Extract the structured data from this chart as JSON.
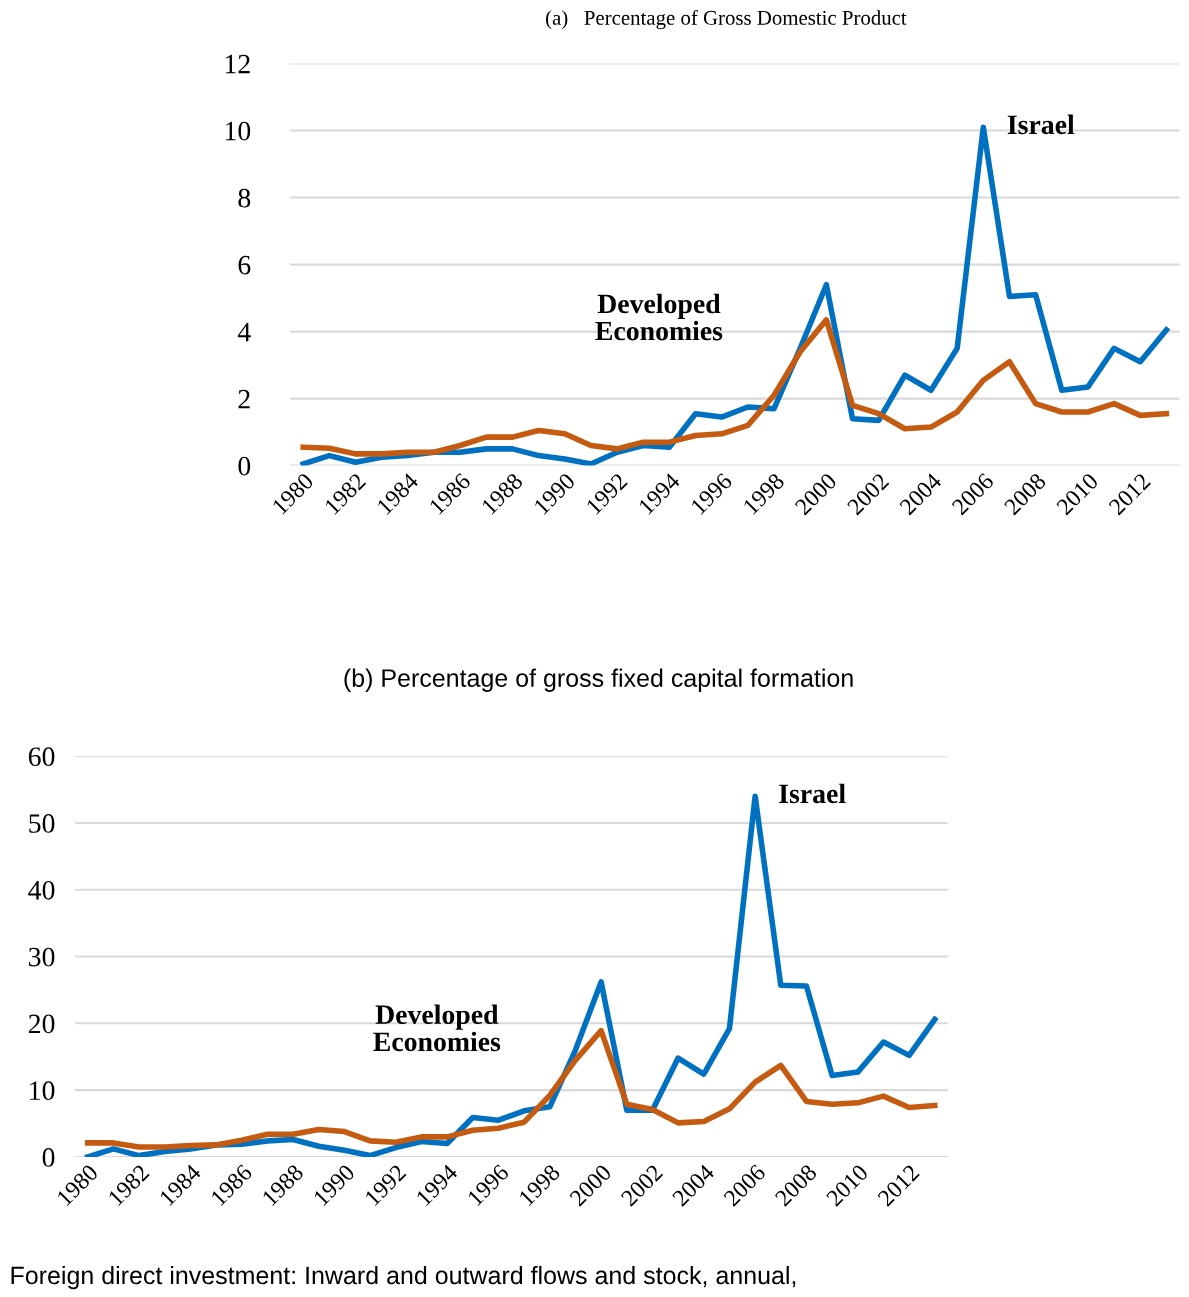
{
  "chart_data": [
    {
      "type": "line",
      "title": "(a)   Percentage of Gross Domestic Product",
      "categories": [
        "1980",
        null,
        "1982",
        null,
        "1984",
        null,
        "1986",
        null,
        "1988",
        null,
        "1990",
        null,
        "1992",
        null,
        "1994",
        null,
        "1996",
        null,
        "1998",
        null,
        "2000",
        null,
        "2002",
        null,
        "2004",
        null,
        "2006",
        null,
        "2008",
        null,
        "2010",
        null,
        "2012",
        null
      ],
      "series": [
        {
          "name": "Israel",
          "color": "#0070c0",
          "values": [
            0.05,
            0.3,
            0.1,
            0.25,
            0.3,
            0.4,
            0.4,
            0.5,
            0.5,
            0.3,
            0.2,
            0.05,
            0.4,
            0.6,
            0.55,
            1.55,
            1.45,
            1.75,
            1.7,
            3.5,
            5.4,
            1.4,
            1.35,
            2.7,
            2.25,
            3.5,
            10.1,
            5.05,
            5.1,
            2.25,
            2.35,
            3.5,
            3.1,
            4.05
          ]
        },
        {
          "name": "Developed Economies",
          "color": "#c55a11",
          "values": [
            0.55,
            0.52,
            0.35,
            0.35,
            0.4,
            0.4,
            0.6,
            0.85,
            0.85,
            1.05,
            0.95,
            0.6,
            0.5,
            0.7,
            0.7,
            0.9,
            0.95,
            1.2,
            2.1,
            3.4,
            4.35,
            1.8,
            1.55,
            1.1,
            1.15,
            1.6,
            2.55,
            3.1,
            1.85,
            1.6,
            1.6,
            1.85,
            1.5,
            1.55
          ]
        }
      ],
      "ylim": [
        0,
        12
      ],
      "yticks": [
        0,
        2,
        4,
        6,
        8,
        10,
        12
      ],
      "grid": "y",
      "legend": false,
      "line_style": "solid",
      "marker": "none"
    },
    {
      "type": "line",
      "title": "(b) Percentage of gross fixed capital formation",
      "categories": [
        "1980",
        null,
        "1982",
        null,
        "1984",
        null,
        "1986",
        null,
        "1988",
        null,
        "1990",
        null,
        "1992",
        null,
        "1994",
        null,
        "1996",
        null,
        "1998",
        null,
        "2000",
        null,
        "2002",
        null,
        "2004",
        null,
        "2006",
        null,
        "2008",
        null,
        "2010",
        null,
        "2012",
        null
      ],
      "series": [
        {
          "name": "Israel",
          "color": "#0070c0",
          "values": [
            0,
            1.2,
            0.2,
            0.8,
            1.2,
            1.8,
            1.9,
            2.4,
            2.6,
            1.6,
            1.0,
            0.2,
            1.4,
            2.3,
            2.0,
            5.9,
            5.5,
            6.9,
            7.5,
            16,
            26.2,
            7,
            7,
            14.8,
            12.4,
            19.2,
            54,
            25.7,
            25.6,
            12.2,
            12.7,
            17.2,
            15.2,
            20.6
          ]
        },
        {
          "name": "Developed Economies",
          "color": "#c55a11",
          "values": [
            2.1,
            2.1,
            1.5,
            1.5,
            1.7,
            1.8,
            2.5,
            3.4,
            3.4,
            4.1,
            3.8,
            2.4,
            2.2,
            3.0,
            3.0,
            4.0,
            4.3,
            5.2,
            9.2,
            14.5,
            18.9,
            7.9,
            7.1,
            5.1,
            5.3,
            7.2,
            11.2,
            13.7,
            8.3,
            7.9,
            8.1,
            9.1,
            7.4,
            7.7
          ]
        }
      ],
      "ylim": [
        0,
        60
      ],
      "yticks": [
        0,
        10,
        20,
        30,
        40,
        50,
        60
      ],
      "grid": "y",
      "legend": false,
      "line_style": "solid",
      "marker": "none",
      "annotations": [
        "Foreign direct investment: Inward and outward flows and stock, annual,"
      ]
    }
  ]
}
